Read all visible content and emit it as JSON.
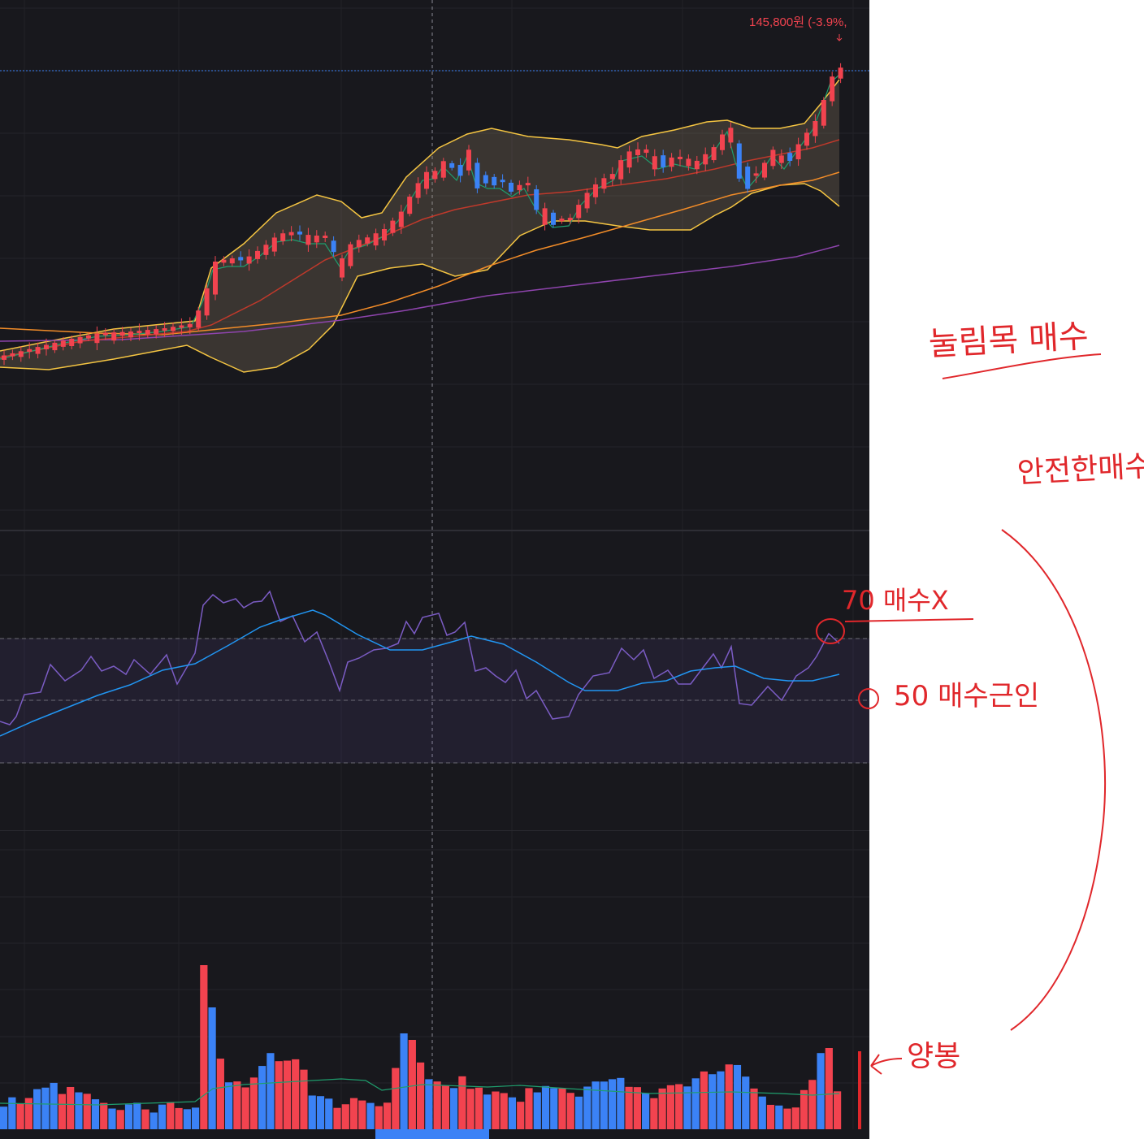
{
  "last_price_label": "145,800원 (-3.9%,",
  "colors": {
    "up": "#f2434f",
    "down": "#3b82f6",
    "bollinger": "#f5c542",
    "ma5": "#1f9e6e",
    "ma20": "#c0392b",
    "ma60": "#f28c28",
    "ma120": "#8e44ad",
    "rsi": "#7b5cc4",
    "rsi_signal": "#2196f3",
    "volume_ma": "#1f9e6e",
    "annotation": "#e0272b"
  },
  "annotations": {
    "note_pullback": "눌림목 매수",
    "note_safe": "안전한매수",
    "note_rsi70": "70 매수X",
    "note_rsi50": "50 매수근인",
    "note_bullish": "양봉"
  },
  "chart_data": [
    {
      "type": "candlestick",
      "overlays": [
        "bollinger",
        "ma5",
        "ma20",
        "ma60",
        "ma120"
      ],
      "last_price": 145800,
      "change_percent": -3.9,
      "grid": true
    },
    {
      "type": "line",
      "indicator": "RSI",
      "reference_levels": [
        70,
        50,
        30
      ],
      "shaded_band": [
        30,
        70
      ]
    },
    {
      "type": "bar",
      "indicator": "volume",
      "overlay": "volume_ma"
    }
  ]
}
